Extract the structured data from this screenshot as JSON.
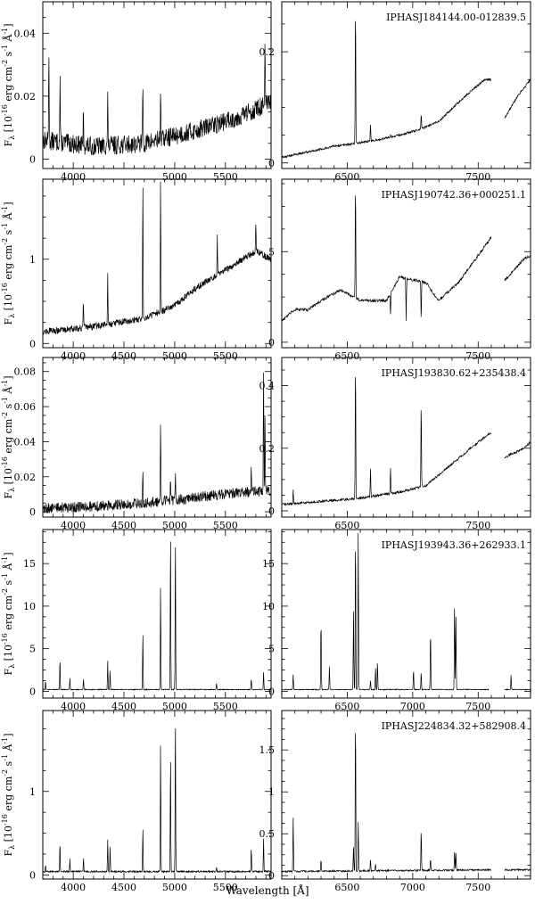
{
  "figure": {
    "xlabel": "Wavelength [Å]",
    "ylabel": "F$_\\lambda$ [10$^{-16}$ erg cm$^{-2}$ s$^{-1}$ Å$^{-1}$]",
    "ylabel_parts": {
      "F": "F",
      "lambda": "λ",
      "exp": "-16",
      "unit": "erg cm",
      "cm_exp": "-2",
      "s": "s",
      "s_exp": "-1",
      "A": "Å",
      "A_exp": "-1"
    }
  },
  "chart_data": [
    {
      "type": "line",
      "row": 0,
      "side": "left",
      "xlim": [
        3700,
        5950
      ],
      "ylim": [
        -0.003,
        0.05
      ],
      "xticks": [
        4000,
        4500,
        5000,
        5500
      ],
      "xticklabels": [
        "4000",
        "",
        "5000",
        "5500"
      ],
      "yticks": [
        0,
        0.02,
        0.04
      ],
      "yticklabels": [
        "0",
        "0.02",
        "0.04"
      ],
      "continuum": [
        [
          3700,
          0.006
        ],
        [
          4200,
          0.004
        ],
        [
          4700,
          0.005
        ],
        [
          5200,
          0.009
        ],
        [
          5600,
          0.013
        ],
        [
          5950,
          0.018
        ]
      ],
      "noise": 0.003,
      "lines": [
        [
          3760,
          0.037
        ],
        [
          3870,
          0.026
        ],
        [
          4100,
          0.014
        ],
        [
          4340,
          0.02
        ],
        [
          4686,
          0.025
        ],
        [
          4861,
          0.023
        ],
        [
          5890,
          0.037
        ]
      ]
    },
    {
      "type": "line",
      "row": 0,
      "side": "right",
      "title": "IPHASJ184144.00-012839.5",
      "xlim": [
        6000,
        7900
      ],
      "ylim": [
        -0.01,
        0.29
      ],
      "xticks": [
        6500,
        7000,
        7500
      ],
      "xticklabels": [
        "6500",
        "",
        "7500"
      ],
      "yticks": [
        0,
        0.2
      ],
      "yticklabels": [
        "0",
        "0.2"
      ],
      "continuum": [
        [
          6000,
          0.01
        ],
        [
          6200,
          0.02
        ],
        [
          6400,
          0.03
        ],
        [
          6700,
          0.04
        ],
        [
          6900,
          0.05
        ],
        [
          7050,
          0.06
        ],
        [
          7200,
          0.075
        ],
        [
          7400,
          0.12
        ],
        [
          7550,
          0.15
        ],
        [
          7600,
          0.15
        ],
        [
          7650,
          null
        ],
        [
          7700,
          0.08
        ],
        [
          7800,
          0.12
        ],
        [
          7900,
          0.15
        ]
      ],
      "noise": 0.002,
      "lines": [
        [
          6563,
          0.29
        ],
        [
          6678,
          0.07
        ],
        [
          6830,
          0.05
        ],
        [
          7065,
          0.09
        ]
      ]
    },
    {
      "type": "line",
      "row": 1,
      "side": "left",
      "xlim": [
        3700,
        5950
      ],
      "ylim": [
        -0.05,
        1.95
      ],
      "xticks": [
        4000,
        4500,
        5000,
        5500
      ],
      "xticklabels": [
        "4000",
        "4500",
        "5000",
        "5500"
      ],
      "yticks": [
        0,
        1
      ],
      "yticklabels": [
        "0",
        "1"
      ],
      "continuum": [
        [
          3700,
          0.14
        ],
        [
          4200,
          0.2
        ],
        [
          4700,
          0.3
        ],
        [
          5000,
          0.45
        ],
        [
          5200,
          0.65
        ],
        [
          5400,
          0.8
        ],
        [
          5600,
          0.95
        ],
        [
          5800,
          1.1
        ],
        [
          5950,
          1.0
        ]
      ],
      "noise": 0.04,
      "lines": [
        [
          4100,
          0.5
        ],
        [
          4340,
          0.85
        ],
        [
          4686,
          1.95
        ],
        [
          4861,
          1.95
        ],
        [
          5420,
          1.3
        ],
        [
          5800,
          1.4
        ]
      ]
    },
    {
      "type": "line",
      "row": 1,
      "side": "right",
      "title": "IPHASJ190742.36+000251.1",
      "xlim": [
        6000,
        7900
      ],
      "ylim": [
        -0.3,
        9.0
      ],
      "xticks": [
        6500,
        7000,
        7500
      ],
      "xticklabels": [
        "6500",
        "",
        "7500"
      ],
      "yticks": [
        0,
        5
      ],
      "yticklabels": [
        "0",
        "5"
      ],
      "continuum": [
        [
          6000,
          1.2
        ],
        [
          6100,
          1.8
        ],
        [
          6200,
          1.8
        ],
        [
          6300,
          2.3
        ],
        [
          6450,
          2.9
        ],
        [
          6600,
          2.3
        ],
        [
          6800,
          2.3
        ],
        [
          6900,
          3.6
        ],
        [
          7100,
          3.3
        ],
        [
          7200,
          2.3
        ],
        [
          7350,
          3.3
        ],
        [
          7500,
          4.8
        ],
        [
          7600,
          5.8
        ],
        [
          7650,
          null
        ],
        [
          7700,
          3.4
        ],
        [
          7850,
          4.6
        ],
        [
          7900,
          4.8
        ]
      ],
      "noise": 0.08,
      "lines": [
        [
          6563,
          9.0
        ],
        [
          6830,
          1.5
        ],
        [
          6950,
          1.2
        ],
        [
          7065,
          1.2
        ]
      ]
    },
    {
      "type": "line",
      "row": 2,
      "side": "left",
      "xlim": [
        3700,
        5950
      ],
      "ylim": [
        -0.003,
        0.088
      ],
      "xticks": [
        4000,
        4500,
        5000,
        5500
      ],
      "xticklabels": [
        "4000",
        "4500",
        "5000",
        "5500"
      ],
      "yticks": [
        0,
        0.02,
        0.04,
        0.06,
        0.08
      ],
      "yticklabels": [
        "0",
        "0.02",
        "0.04",
        "0.06",
        "0.08"
      ],
      "continuum": [
        [
          3700,
          0.002
        ],
        [
          4200,
          0.003
        ],
        [
          4700,
          0.005
        ],
        [
          5200,
          0.008
        ],
        [
          5600,
          0.011
        ],
        [
          5950,
          0.012
        ]
      ],
      "noise": 0.003,
      "lines": [
        [
          4686,
          0.025
        ],
        [
          4861,
          0.052
        ],
        [
          4959,
          0.018
        ],
        [
          5007,
          0.023
        ],
        [
          5755,
          0.025
        ],
        [
          5876,
          0.082
        ],
        [
          5890,
          0.06
        ]
      ]
    },
    {
      "type": "line",
      "row": 2,
      "side": "right",
      "title": "IPHASJ193830.62+235438.4",
      "xlim": [
        6000,
        7900
      ],
      "ylim": [
        -0.02,
        0.49
      ],
      "xticks": [
        6500,
        7000,
        7500
      ],
      "xticklabels": [
        "6500",
        "",
        "7500"
      ],
      "yticks": [
        0,
        0.2,
        0.4
      ],
      "yticklabels": [
        "0",
        "0.2",
        "0.4"
      ],
      "continuum": [
        [
          6000,
          0.02
        ],
        [
          6300,
          0.03
        ],
        [
          6600,
          0.04
        ],
        [
          6900,
          0.06
        ],
        [
          7100,
          0.08
        ],
        [
          7300,
          0.15
        ],
        [
          7500,
          0.22
        ],
        [
          7600,
          0.25
        ],
        [
          7650,
          null
        ],
        [
          7700,
          0.17
        ],
        [
          7850,
          0.2
        ],
        [
          7900,
          0.22
        ]
      ],
      "noise": 0.004,
      "lines": [
        [
          6087,
          0.07
        ],
        [
          6563,
          0.49
        ],
        [
          6678,
          0.14
        ],
        [
          6830,
          0.14
        ],
        [
          7065,
          0.35
        ]
      ]
    },
    {
      "type": "line",
      "row": 3,
      "side": "left",
      "xlim": [
        3700,
        5950
      ],
      "ylim": [
        -0.8,
        19.0
      ],
      "xticks": [
        4000,
        4500,
        5000,
        5500
      ],
      "xticklabels": [
        "4000",
        "4500",
        "5000",
        "5500"
      ],
      "yticks": [
        0,
        5,
        10,
        15
      ],
      "yticklabels": [
        "0",
        "5",
        "10",
        "15"
      ],
      "continuum": [
        [
          3700,
          0.2
        ],
        [
          5950,
          0.2
        ]
      ],
      "noise": 0.05,
      "lines": [
        [
          3727,
          1.2
        ],
        [
          3869,
          3.9
        ],
        [
          3967,
          1.5
        ],
        [
          4101,
          1.5
        ],
        [
          4340,
          3.6
        ],
        [
          4363,
          2.6
        ],
        [
          4686,
          6.9
        ],
        [
          4861,
          12.5
        ],
        [
          4959,
          19
        ],
        [
          5007,
          19
        ],
        [
          5412,
          1.0
        ],
        [
          5755,
          1.5
        ],
        [
          5876,
          2.2
        ]
      ]
    },
    {
      "type": "line",
      "row": 3,
      "side": "right",
      "title": "IPHASJ193943.36+262933.1",
      "xlim": [
        6000,
        7900
      ],
      "ylim": [
        -0.8,
        19.0
      ],
      "xticks": [
        6500,
        7000,
        7500
      ],
      "xticklabels": [
        "6500",
        "7000",
        "7500"
      ],
      "yticks": [
        0,
        5,
        10,
        15
      ],
      "yticklabels": [
        "0",
        "5",
        "10",
        "15"
      ],
      "continuum": [
        [
          6000,
          0.2
        ],
        [
          7580,
          0.2
        ],
        [
          7640,
          null
        ],
        [
          7700,
          0.2
        ],
        [
          7900,
          0.2
        ]
      ],
      "noise": 0.05,
      "lines": [
        [
          6087,
          2.0
        ],
        [
          6300,
          8.6
        ],
        [
          6364,
          2.9
        ],
        [
          6548,
          9.5
        ],
        [
          6563,
          19
        ],
        [
          6584,
          19
        ],
        [
          6678,
          1.3
        ],
        [
          6716,
          2.8
        ],
        [
          6731,
          3.5
        ],
        [
          7006,
          2.5
        ],
        [
          7065,
          2.3
        ],
        [
          7136,
          7.3
        ],
        [
          7320,
          10.6
        ],
        [
          7330,
          8.8
        ],
        [
          7751,
          1.9
        ]
      ]
    },
    {
      "type": "line",
      "row": 4,
      "side": "left",
      "xlim": [
        3700,
        5950
      ],
      "ylim": [
        -0.05,
        1.97
      ],
      "xticks": [
        4000,
        4500,
        5000,
        5500
      ],
      "xticklabels": [
        "4000",
        "4500",
        "5000",
        "5500"
      ],
      "yticks": [
        0,
        1
      ],
      "yticklabels": [
        "0",
        "1"
      ],
      "continuum": [
        [
          3700,
          0.04
        ],
        [
          5950,
          0.04
        ]
      ],
      "noise": 0.01,
      "lines": [
        [
          3727,
          0.12
        ],
        [
          3869,
          0.38
        ],
        [
          3967,
          0.2
        ],
        [
          4101,
          0.2
        ],
        [
          4340,
          0.43
        ],
        [
          4363,
          0.36
        ],
        [
          4686,
          0.57
        ],
        [
          4861,
          1.6
        ],
        [
          4959,
          1.45
        ],
        [
          5007,
          1.97
        ],
        [
          5412,
          0.1
        ],
        [
          5755,
          0.33
        ],
        [
          5876,
          0.43
        ]
      ]
    },
    {
      "type": "line",
      "row": 4,
      "side": "right",
      "title": "IPHASJ224834.32+582908.4",
      "xlim": [
        6000,
        7900
      ],
      "ylim": [
        -0.04,
        1.97
      ],
      "xticks": [
        6500,
        7000,
        7500
      ],
      "xticklabels": [
        "6500",
        "7000",
        "7500"
      ],
      "yticks": [
        0,
        0.5,
        1,
        1.5
      ],
      "yticklabels": [
        "0",
        "0.5",
        "1",
        "1.5"
      ],
      "continuum": [
        [
          6000,
          0.05
        ],
        [
          7600,
          0.07
        ],
        [
          7640,
          null
        ],
        [
          7700,
          0.07
        ],
        [
          7900,
          0.07
        ]
      ],
      "noise": 0.01,
      "lines": [
        [
          6087,
          0.7
        ],
        [
          6300,
          0.2
        ],
        [
          6548,
          0.35
        ],
        [
          6563,
          1.97
        ],
        [
          6584,
          0.65
        ],
        [
          6678,
          0.2
        ],
        [
          6716,
          0.15
        ],
        [
          7065,
          0.57
        ],
        [
          7136,
          0.2
        ],
        [
          7320,
          0.3
        ],
        [
          7330,
          0.27
        ]
      ]
    }
  ]
}
